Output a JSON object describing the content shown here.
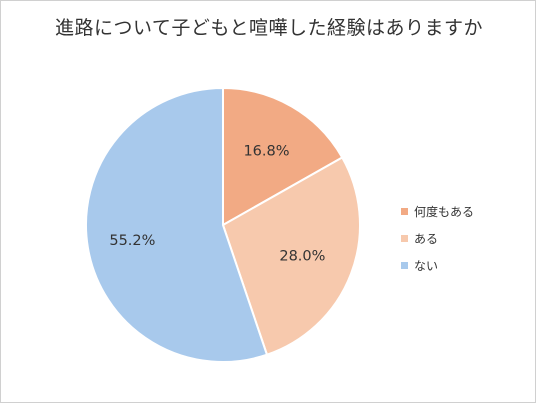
{
  "chart_data": {
    "type": "pie",
    "title": "進路について子どもと喧嘩した経験はありますか",
    "categories": [
      "何度もある",
      "ある",
      "ない"
    ],
    "values": [
      16.8,
      28.0,
      55.2
    ],
    "value_labels": [
      "16.8%",
      "28.0%",
      "55.2%"
    ],
    "colors": [
      "#f2aa84",
      "#f7c9ad",
      "#a8c9ec"
    ],
    "start": "top, clockwise",
    "legend_position": "right"
  }
}
